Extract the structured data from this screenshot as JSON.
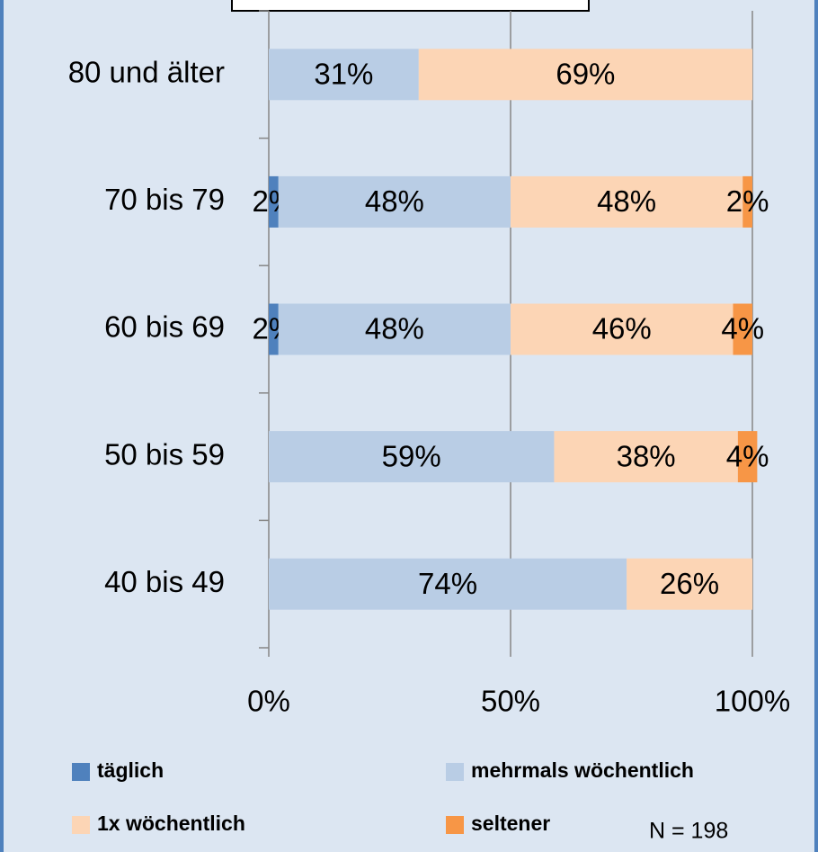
{
  "chart_data": {
    "type": "stacked-barh",
    "categories": [
      "80 und älter",
      "70 bis 79",
      "60 bis 69",
      "50  bis 59",
      "40 bis 49"
    ],
    "series": [
      {
        "name": "täglich",
        "color": "#4f81bd",
        "values": [
          0,
          2,
          2,
          0,
          0
        ],
        "value_labels": [
          null,
          "2%",
          "2%",
          null,
          null
        ]
      },
      {
        "name": "mehrmals wöchentlich",
        "color": "#b9cde5",
        "values": [
          31,
          48,
          48,
          59,
          74
        ],
        "value_labels": [
          "31%",
          "48%",
          "48%",
          "59%",
          "74%"
        ]
      },
      {
        "name": "1x wöchentlich",
        "color": "#fcd5b5",
        "values": [
          69,
          48,
          46,
          38,
          26
        ],
        "value_labels": [
          "69%",
          "48%",
          "46%",
          "38%",
          "26%"
        ]
      },
      {
        "name": "seltener",
        "color": "#f79646",
        "values": [
          0,
          2,
          4,
          4,
          0
        ],
        "value_labels": [
          null,
          "2%",
          "4%",
          "4%",
          null
        ]
      }
    ],
    "xlim": [
      0,
      100
    ],
    "xticks": [
      {
        "value": 0,
        "label": "0%"
      },
      {
        "value": 50,
        "label": "50%"
      },
      {
        "value": 100,
        "label": "100%"
      }
    ],
    "grid": true,
    "annotation": "N = 198"
  }
}
